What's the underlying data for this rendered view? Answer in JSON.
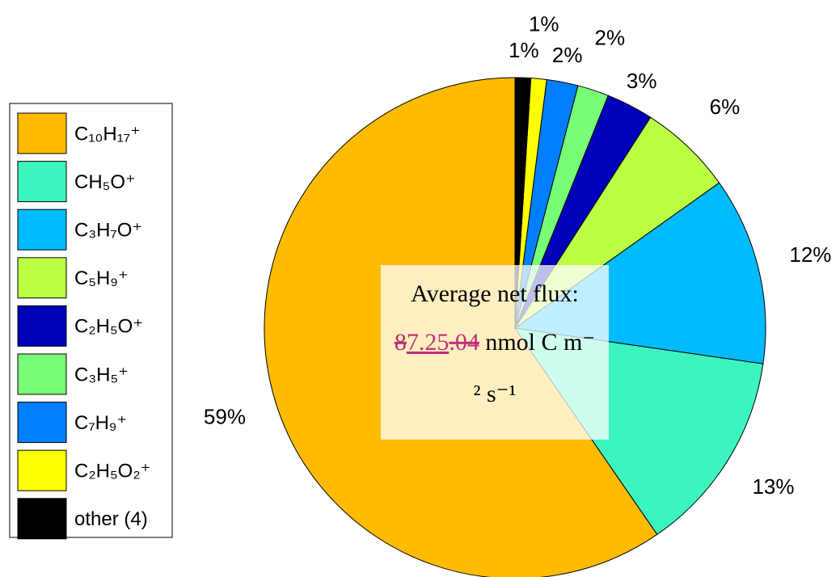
{
  "chart_data": {
    "type": "pie",
    "categories": [
      "C₁₀H₁₇⁺",
      "CH₅O⁺",
      "C₃H₇O⁺",
      "C₅H₉⁺",
      "C₂H₅O⁺",
      "C₃H₅⁺",
      "C₇H₉⁺",
      "C₂H₅O₂⁺",
      "other (4)"
    ],
    "values": [
      59,
      13,
      12,
      6,
      3,
      2,
      2,
      1,
      1
    ],
    "value_labels": [
      "59%",
      "13%",
      "12%",
      "6%",
      "3%",
      "2%",
      "2%",
      "1%",
      "1%"
    ],
    "colors": [
      "#FFBB00",
      "#3CF5BE",
      "#00BBFF",
      "#BBFF44",
      "#0000BB",
      "#77FF77",
      "#0080FF",
      "#FFFF00",
      "#000000"
    ],
    "legend": "left",
    "annotation": {
      "title": "Average net flux:",
      "flux_parts": [
        "8",
        "7.25",
        ".04",
        " nmol C m⁻",
        "² s⁻¹"
      ]
    }
  }
}
